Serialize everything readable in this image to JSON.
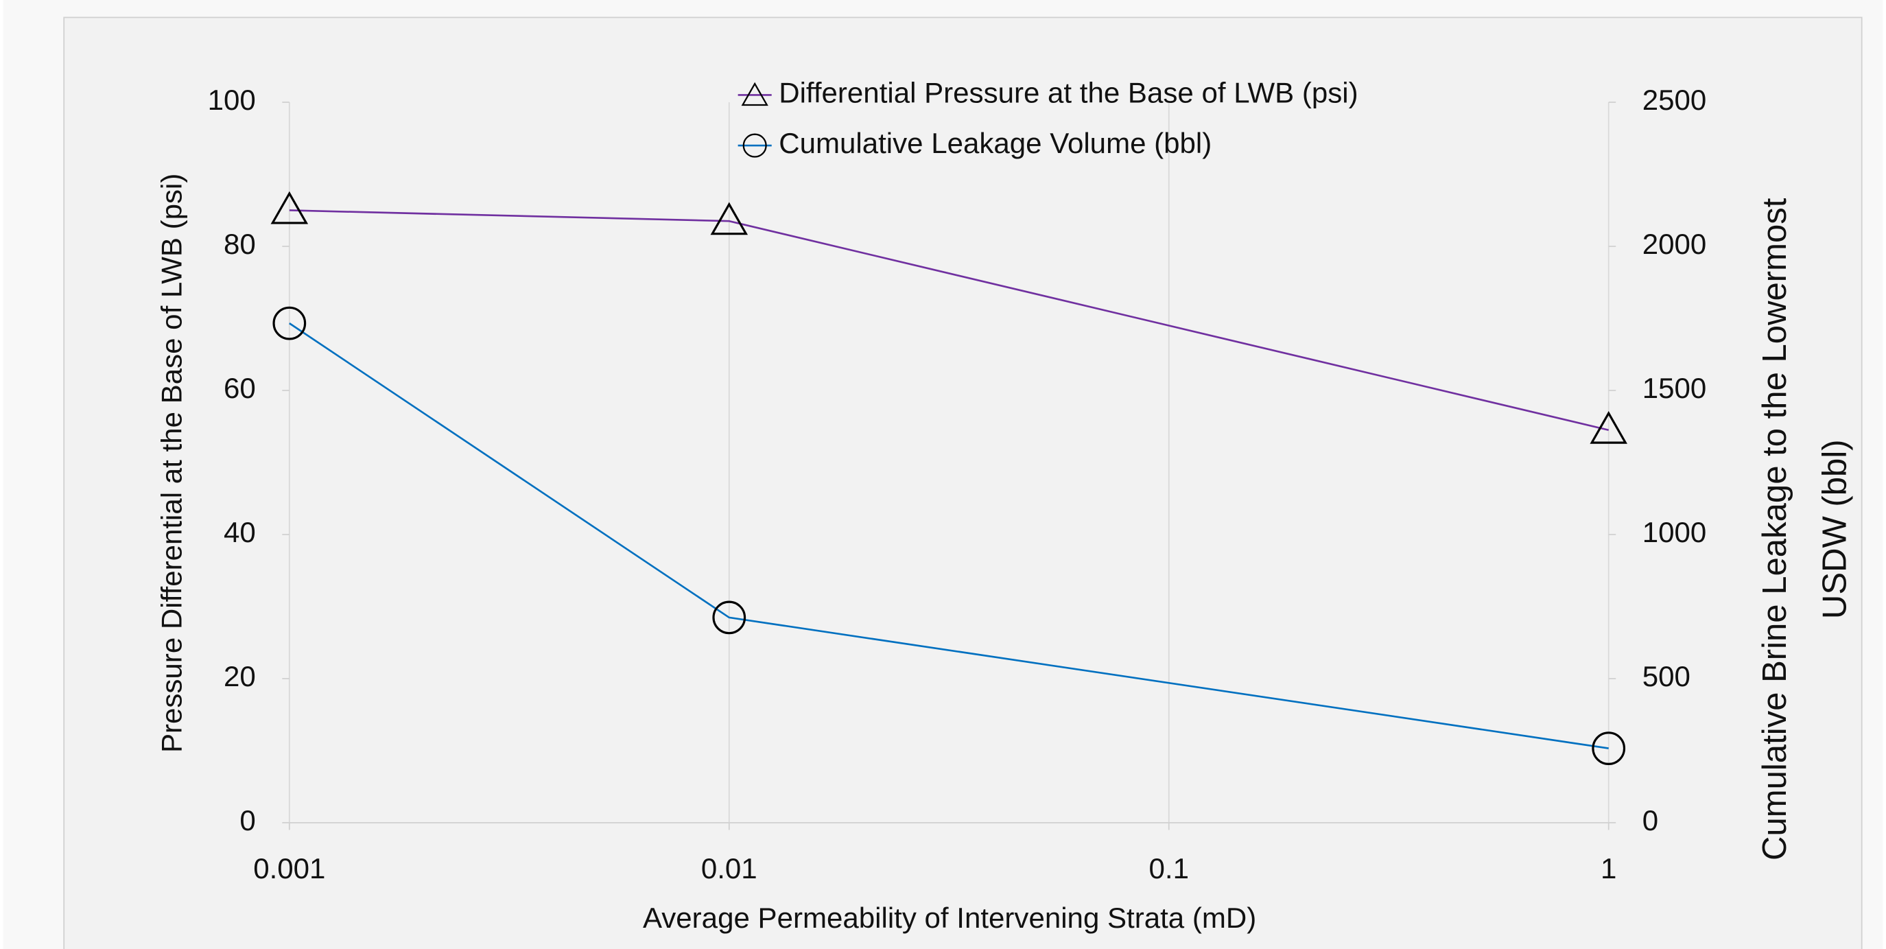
{
  "chart_data": {
    "type": "line",
    "x": [
      0.001,
      0.01,
      1
    ],
    "xlabel": "Average Permeability of Intervening Strata (mD)",
    "ylabel": "Pressure Differential at the Base of LWB (psi)",
    "y2label": [
      "Cumulative Brine Leakage to the  Lowermost",
      "USDW (bbl)"
    ],
    "xscale": "log",
    "xlim": [
      0.001,
      1
    ],
    "xticks": [
      0.001,
      0.01,
      0.1,
      1
    ],
    "ylim": [
      0,
      100
    ],
    "yticks": [
      0,
      20,
      40,
      60,
      80,
      100
    ],
    "y2lim": [
      0,
      2500
    ],
    "y2ticks": [
      0,
      500,
      1000,
      1500,
      2000,
      2500
    ],
    "grid": "x",
    "legend": "top",
    "series": [
      {
        "name": "Differential Pressure at the Base of LWB (psi)",
        "color": "#7030a0",
        "marker": "triangle",
        "values": [
          85,
          83.5,
          54.5
        ]
      },
      {
        "name": "Cumulative Leakage Volume (bbl)",
        "color": "#0070c0",
        "marker": "circle",
        "axis": "y2",
        "values": [
          1733,
          712,
          258
        ]
      }
    ]
  }
}
